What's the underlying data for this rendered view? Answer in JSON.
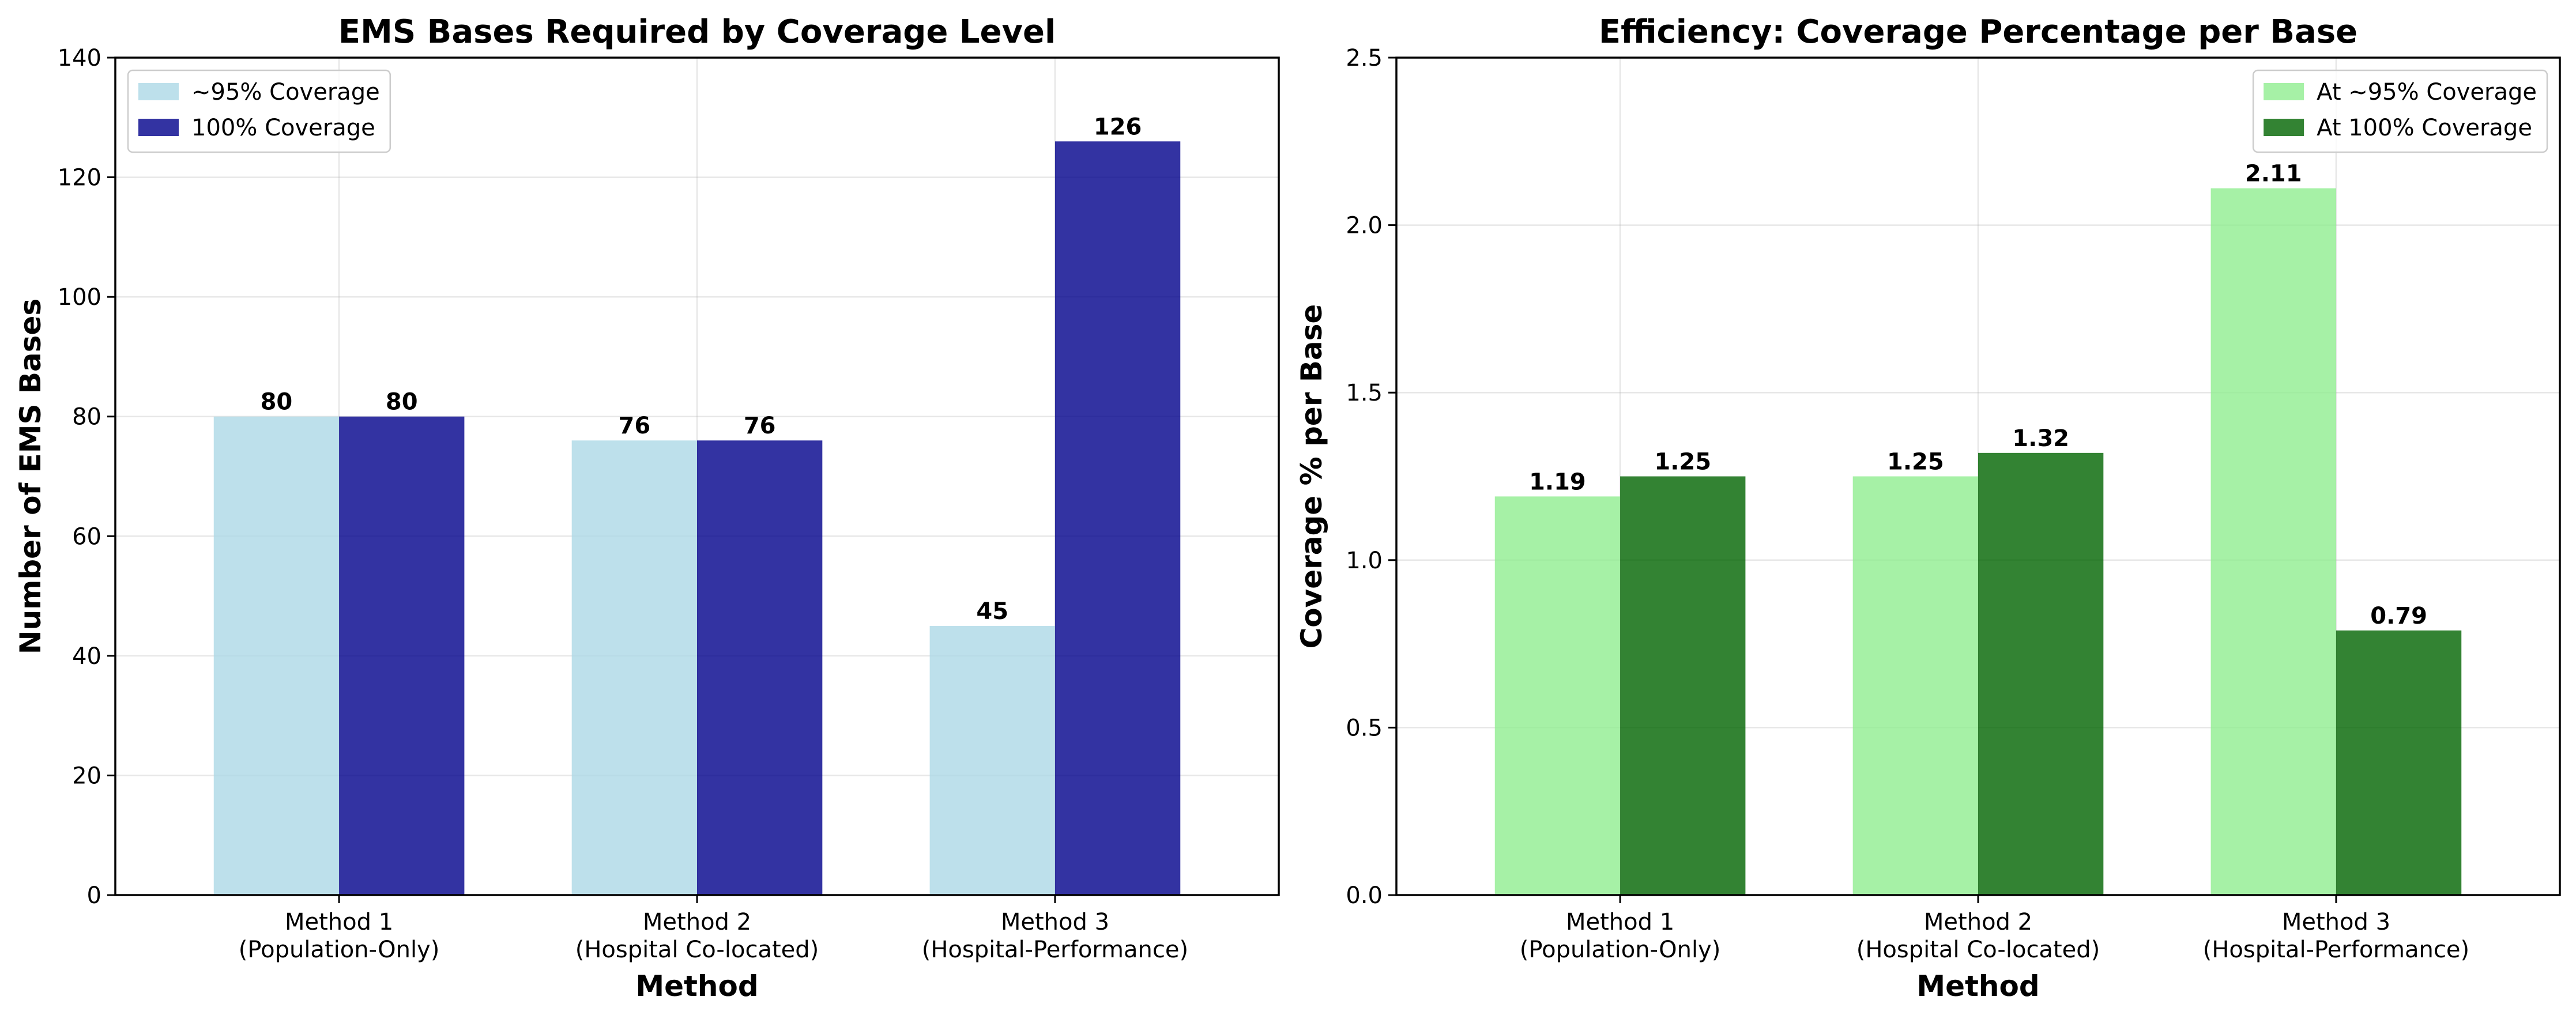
{
  "chart_data": [
    {
      "type": "bar",
      "title": "EMS Bases Required by Coverage Level",
      "xlabel": "Method",
      "ylabel": "Number of EMS Bases",
      "categories": [
        "Method 1\n(Population-Only)",
        "Method 2\n(Hospital Co-located)",
        "Method 3\n(Hospital-Performance)"
      ],
      "ylim": [
        0,
        140
      ],
      "yticks": [
        0,
        20,
        40,
        60,
        80,
        100,
        120,
        140
      ],
      "ytick_labels": [
        "0",
        "20",
        "40",
        "60",
        "80",
        "100",
        "120",
        "140"
      ],
      "grid": true,
      "legend_position": "upper left",
      "series": [
        {
          "name": "~95% Coverage",
          "values": [
            80,
            76,
            45
          ],
          "labels": [
            "80",
            "76",
            "45"
          ],
          "color": "#add8e6"
        },
        {
          "name": "100% Coverage",
          "values": [
            80,
            76,
            126
          ],
          "labels": [
            "80",
            "76",
            "126"
          ],
          "color": "#00008b"
        }
      ]
    },
    {
      "type": "bar",
      "title": "Efficiency: Coverage Percentage per Base",
      "xlabel": "Method",
      "ylabel": "Coverage % per Base",
      "categories": [
        "Method 1\n(Population-Only)",
        "Method 2\n(Hospital Co-located)",
        "Method 3\n(Hospital-Performance)"
      ],
      "ylim": [
        0,
        2.5
      ],
      "yticks": [
        0,
        0.5,
        1.0,
        1.5,
        2.0,
        2.5
      ],
      "ytick_labels": [
        "0.0",
        "0.5",
        "1.0",
        "1.5",
        "2.0",
        "2.5"
      ],
      "grid": true,
      "legend_position": "upper right",
      "series": [
        {
          "name": "At ~95% Coverage",
          "values": [
            1.19,
            1.25,
            2.11
          ],
          "labels": [
            "1.19",
            "1.25",
            "2.11"
          ],
          "color": "#90ee90"
        },
        {
          "name": "At 100% Coverage",
          "values": [
            1.25,
            1.32,
            0.79
          ],
          "labels": [
            "1.25",
            "1.32",
            "0.79"
          ],
          "color": "#006400"
        }
      ]
    }
  ]
}
